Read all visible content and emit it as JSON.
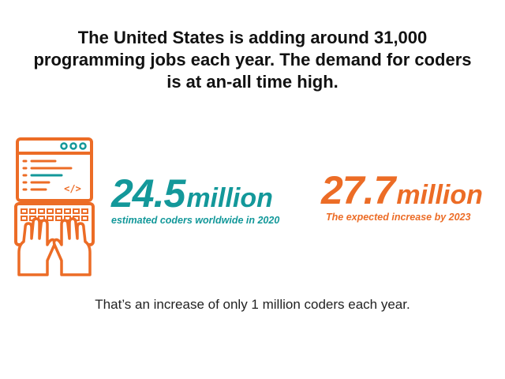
{
  "headline": {
    "line1": "The United States is adding around 31,000",
    "line2": "programming jobs each year. The demand for coders",
    "line3": "is at an-all time high."
  },
  "illustration": {
    "icon": "laptop-coding-hands-icon",
    "code_glyph": "</>"
  },
  "stats": {
    "current": {
      "value": "24.5",
      "unit": "million",
      "caption": "estimated coders worldwide in 2020"
    },
    "projected": {
      "value": "27.7",
      "unit": "million",
      "caption": "The expected increase by 2023"
    }
  },
  "footer": "That’s an increase of only 1 million coders each year.",
  "colors": {
    "teal": "#13989a",
    "orange": "#ec6c26",
    "text": "#111111"
  }
}
